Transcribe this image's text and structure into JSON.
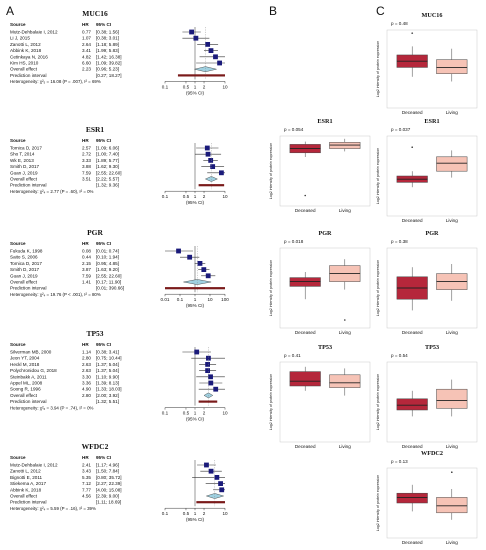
{
  "panels": {
    "a": "A",
    "b": "B",
    "c": "C"
  },
  "forest_header": {
    "source": "Source",
    "hr": "HR",
    "ci": "95% CI"
  },
  "forest_axis_label": "(95% CI)",
  "box_axis_label": "Log2 intensity of protein expression",
  "box_categories": [
    "Deceased",
    "Living"
  ],
  "colors": {
    "deceased": "#b5273b",
    "living": "#f6c3b6",
    "study": "#1a1a7a",
    "overall": "#9fd0e0",
    "prediction": "#7a1a1a",
    "line": "#333333"
  },
  "chart_data": [
    {
      "type": "forest",
      "title": "MUC16",
      "xlim": [
        0.1,
        10
      ],
      "xscale": "log",
      "ticks": [
        "0.1",
        "0.5",
        "1",
        "2",
        "10"
      ],
      "studies": [
        {
          "source": "Mutz-Dehbalaie I, 2012",
          "hr": 0.77,
          "ci": "[0.38; 1.56]",
          "lo": 0.38,
          "hi": 1.56
        },
        {
          "source": "Li J, 2015",
          "hr": 1.07,
          "ci": "[0.38; 3.01]",
          "lo": 0.38,
          "hi": 3.01
        },
        {
          "source": "Zanotti L, 2012",
          "hr": 2.64,
          "ci": "[1.18; 5.89]",
          "lo": 1.18,
          "hi": 5.89
        },
        {
          "source": "Abbink K, 2018",
          "hr": 3.41,
          "ci": "[1.99; 5.83]",
          "lo": 1.99,
          "hi": 5.83
        },
        {
          "source": "Cetinkaya N, 2016",
          "hr": 4.82,
          "ci": "[1.42; 16.38]",
          "lo": 1.42,
          "hi": 16.38
        },
        {
          "source": "Kim HS, 2010",
          "hr": 6.6,
          "ci": "[1.09; 39.82]",
          "lo": 1.09,
          "hi": 39.82
        }
      ],
      "overall": {
        "label": "Overall effect",
        "hr": 2.23,
        "ci": "[0.96; 5.23]",
        "lo": 0.96,
        "hi": 5.23
      },
      "prediction": {
        "label": "Prediction interval",
        "ci": "[0.27; 18.27]",
        "lo": 0.27,
        "hi": 18.27
      },
      "heterogeneity": "Heterogeneity: χ²₅ = 16.08 (P = .007), I² = 69%"
    },
    {
      "type": "forest",
      "title": "ESR1",
      "xlim": [
        0.1,
        10
      ],
      "xscale": "log",
      "ticks": [
        "0.1",
        "0.5",
        "1",
        "2",
        "10"
      ],
      "studies": [
        {
          "source": "Tomica D, 2017",
          "hr": 2.57,
          "ci": "[1.09; 6.06]",
          "lo": 1.09,
          "hi": 6.06
        },
        {
          "source": "Sho T, 2014",
          "hr": 2.72,
          "ci": "[1.00; 7.40]",
          "lo": 1.0,
          "hi": 7.4
        },
        {
          "source": "Wk E, 2013",
          "hr": 3.33,
          "ci": "[1.89; 5.77]",
          "lo": 1.89,
          "hi": 5.77
        },
        {
          "source": "Smith D, 2017",
          "hr": 3.88,
          "ci": "[1.62; 9.30]",
          "lo": 1.62,
          "hi": 9.3
        },
        {
          "source": "Guan J, 2019",
          "hr": 7.59,
          "ci": "[2.55; 22.60]",
          "lo": 2.55,
          "hi": 22.6
        }
      ],
      "overall": {
        "label": "Overall effect",
        "hr": 3.51,
        "ci": "[2.22; 5.57]",
        "lo": 2.22,
        "hi": 5.57
      },
      "prediction": {
        "label": "Prediction interval",
        "ci": "[1.32; 9.36]",
        "lo": 1.32,
        "hi": 9.36
      },
      "heterogeneity": "Heterogeneity: χ²₄ = 2.77 (P = .60), I² = 0%"
    },
    {
      "type": "forest",
      "title": "PGR",
      "xlim": [
        0.01,
        100
      ],
      "xscale": "log",
      "ticks": [
        "0.01",
        "0.1",
        "1",
        "10",
        "100"
      ],
      "studies": [
        {
          "source": "Fukuda K, 1998",
          "hr": 0.08,
          "ci": "[0.01; 0.74]",
          "lo": 0.01,
          "hi": 0.74
        },
        {
          "source": "Saito S, 2006",
          "hr": 0.44,
          "ci": "[0.10; 1.94]",
          "lo": 0.1,
          "hi": 1.94
        },
        {
          "source": "Tomica D, 2017",
          "hr": 2.15,
          "ci": "[0.95; 4.85]",
          "lo": 0.95,
          "hi": 4.85
        },
        {
          "source": "Smith D, 2017",
          "hr": 3.87,
          "ci": "[1.63; 9.20]",
          "lo": 1.63,
          "hi": 9.2
        },
        {
          "source": "Guan J, 2019",
          "hr": 7.59,
          "ci": "[2.55; 22.60]",
          "lo": 2.55,
          "hi": 22.6
        }
      ],
      "overall": {
        "label": "Overall effect",
        "hr": 1.41,
        "ci": "[0.17; 11.90]",
        "lo": 0.17,
        "hi": 11.9
      },
      "prediction": {
        "label": "Prediction interval",
        "ci": "[0.01; 390.66]",
        "lo": 0.01,
        "hi": 100
      },
      "heterogeneity": "Heterogeneity: χ²₄ = 19.76 (P < .001), I² = 80%"
    },
    {
      "type": "forest",
      "title": "TP53",
      "xlim": [
        0.1,
        10
      ],
      "xscale": "log",
      "ticks": [
        "0.1",
        "0.5",
        "1",
        "2",
        "10"
      ],
      "studies": [
        {
          "source": "Silverman MB, 2000",
          "hr": 1.14,
          "ci": "[0.38; 3.41]",
          "lo": 0.38,
          "hi": 3.41
        },
        {
          "source": "Jeon YT, 2004",
          "hr": 2.8,
          "ci": "[0.75; 10.44]",
          "lo": 0.75,
          "hi": 10.44
        },
        {
          "source": "Heckl M, 2018",
          "hr": 2.63,
          "ci": "[1.37; 5.04]",
          "lo": 1.37,
          "hi": 5.04
        },
        {
          "source": "Polychronidou G, 2018",
          "hr": 2.63,
          "ci": "[1.37; 5.04]",
          "lo": 1.37,
          "hi": 5.04
        },
        {
          "source": "Steinbakk A, 2011",
          "hr": 3.3,
          "ci": "[1.10; 9.90]",
          "lo": 1.1,
          "hi": 9.9
        },
        {
          "source": "Appel ML, 2008",
          "hr": 3.36,
          "ci": "[1.39; 8.13]",
          "lo": 1.39,
          "hi": 8.13
        },
        {
          "source": "Soong R, 1996",
          "hr": 4.9,
          "ci": "[1.33; 18.03]",
          "lo": 1.33,
          "hi": 18.03
        }
      ],
      "overall": {
        "label": "Overall effect",
        "hr": 2.8,
        "ci": "[2.00; 3.92]",
        "lo": 2.0,
        "hi": 3.92
      },
      "prediction": {
        "label": "Prediction interval",
        "ci": "[1.32; 5.51]",
        "lo": 1.32,
        "hi": 5.51
      },
      "heterogeneity": "Heterogeneity: χ²₆ = 3.94 (P = .74), I² = 0%"
    },
    {
      "type": "forest",
      "title": "WFDC2",
      "xlim": [
        0.1,
        10
      ],
      "xscale": "log",
      "ticks": [
        "0.1",
        "0.5",
        "1",
        "2",
        "10"
      ],
      "studies": [
        {
          "source": "Mutz-Dehbalaie I, 2012",
          "hr": 2.41,
          "ci": "[1.17; 4.96]",
          "lo": 1.17,
          "hi": 4.96
        },
        {
          "source": "Zanotti L, 2012",
          "hr": 3.43,
          "ci": "[1.50; 7.84]",
          "lo": 1.5,
          "hi": 7.84
        },
        {
          "source": "Bignotti E, 2011",
          "hr": 5.35,
          "ci": "[0.80; 35.72]",
          "lo": 0.8,
          "hi": 35.72
        },
        {
          "source": "Stiekema A, 2017",
          "hr": 7.12,
          "ci": "[2.27; 22.39]",
          "lo": 2.27,
          "hi": 22.39
        },
        {
          "source": "Abbink K, 2018",
          "hr": 7.77,
          "ci": "[4.00; 15.08]",
          "lo": 4.0,
          "hi": 15.08
        }
      ],
      "overall": {
        "label": "Overall effect",
        "hr": 4.56,
        "ci": "[2.39; 9.00]",
        "lo": 2.39,
        "hi": 9.0
      },
      "prediction": {
        "label": "Prediction interval",
        "ci": "[1.11; 18.69]",
        "lo": 1.11,
        "hi": 18.69
      },
      "heterogeneity": "Heterogeneity: χ²₄ = 5.59 (P = .16), I² = 39%"
    },
    {
      "type": "box",
      "title": "MUC16",
      "pvalue": "p = 0.48",
      "ylim": [
        0,
        10
      ],
      "groups": [
        {
          "name": "Deceased",
          "q1": 5.2,
          "median": 6.0,
          "q3": 6.8,
          "whisker_lo": 4.0,
          "whisker_hi": 7.9,
          "outliers": [
            9.6
          ]
        },
        {
          "name": "Living",
          "q1": 4.4,
          "median": 5.2,
          "q3": 6.2,
          "whisker_lo": 3.4,
          "whisker_hi": 7.6,
          "outliers": []
        }
      ]
    },
    {
      "type": "box",
      "title": "ESR1",
      "pvalue": "p = 0.054",
      "ylim": [
        0,
        10
      ],
      "groups": [
        {
          "name": "Deceased",
          "q1": 7.6,
          "median": 8.2,
          "q3": 8.8,
          "whisker_lo": 7.0,
          "whisker_hi": 9.2,
          "outliers": [
            1.5
          ]
        },
        {
          "name": "Living",
          "q1": 8.2,
          "median": 8.7,
          "q3": 9.1,
          "whisker_lo": 7.8,
          "whisker_hi": 9.6,
          "outliers": []
        }
      ]
    },
    {
      "type": "box",
      "title": "PGR",
      "pvalue": "p = 0.018",
      "ylim": [
        0,
        10
      ],
      "groups": [
        {
          "name": "Deceased",
          "q1": 5.2,
          "median": 5.8,
          "q3": 6.3,
          "whisker_lo": 3.6,
          "whisker_hi": 7.0,
          "outliers": []
        },
        {
          "name": "Living",
          "q1": 5.8,
          "median": 6.8,
          "q3": 7.8,
          "whisker_lo": 4.8,
          "whisker_hi": 8.6,
          "outliers": [
            1.0
          ]
        }
      ]
    },
    {
      "type": "box",
      "title": "TP53",
      "pvalue": "p = 0.41",
      "ylim": [
        0,
        10
      ],
      "groups": [
        {
          "name": "Deceased",
          "q1": 7.0,
          "median": 7.6,
          "q3": 8.8,
          "whisker_lo": 6.4,
          "whisker_hi": 9.4,
          "outliers": []
        },
        {
          "name": "Living",
          "q1": 6.8,
          "median": 7.4,
          "q3": 8.4,
          "whisker_lo": 5.8,
          "whisker_hi": 9.2,
          "outliers": []
        }
      ]
    },
    {
      "type": "box",
      "title": "ESR1",
      "pvalue": "p = 0.037",
      "ylim": [
        0,
        10
      ],
      "groups": [
        {
          "name": "Deceased",
          "q1": 4.2,
          "median": 4.6,
          "q3": 5.0,
          "whisker_lo": 3.6,
          "whisker_hi": 5.6,
          "outliers": [
            8.6
          ]
        },
        {
          "name": "Living",
          "q1": 5.6,
          "median": 6.6,
          "q3": 7.4,
          "whisker_lo": 4.8,
          "whisker_hi": 8.2,
          "outliers": []
        }
      ]
    },
    {
      "type": "box",
      "title": "PGR",
      "pvalue": "p = 0.38",
      "ylim": [
        0,
        10
      ],
      "groups": [
        {
          "name": "Deceased",
          "q1": 3.6,
          "median": 5.0,
          "q3": 6.4,
          "whisker_lo": 2.2,
          "whisker_hi": 7.6,
          "outliers": []
        },
        {
          "name": "Living",
          "q1": 4.8,
          "median": 5.8,
          "q3": 6.8,
          "whisker_lo": 3.4,
          "whisker_hi": 8.0,
          "outliers": []
        }
      ]
    },
    {
      "type": "box",
      "title": "TP53",
      "pvalue": "p = 0.54",
      "ylim": [
        0,
        10
      ],
      "groups": [
        {
          "name": "Deceased",
          "q1": 4.0,
          "median": 4.6,
          "q3": 5.4,
          "whisker_lo": 3.2,
          "whisker_hi": 6.4,
          "outliers": []
        },
        {
          "name": "Living",
          "q1": 4.2,
          "median": 5.2,
          "q3": 6.6,
          "whisker_lo": 3.2,
          "whisker_hi": 7.8,
          "outliers": []
        }
      ]
    },
    {
      "type": "box",
      "title": "WFDC2",
      "pvalue": "p = 0.13",
      "ylim": [
        0,
        10
      ],
      "groups": [
        {
          "name": "Deceased",
          "q1": 5.0,
          "median": 5.8,
          "q3": 6.4,
          "whisker_lo": 3.8,
          "whisker_hi": 7.6,
          "outliers": []
        },
        {
          "name": "Living",
          "q1": 3.6,
          "median": 4.6,
          "q3": 5.8,
          "whisker_lo": 2.6,
          "whisker_hi": 7.0,
          "outliers": [
            9.4
          ]
        }
      ]
    }
  ]
}
